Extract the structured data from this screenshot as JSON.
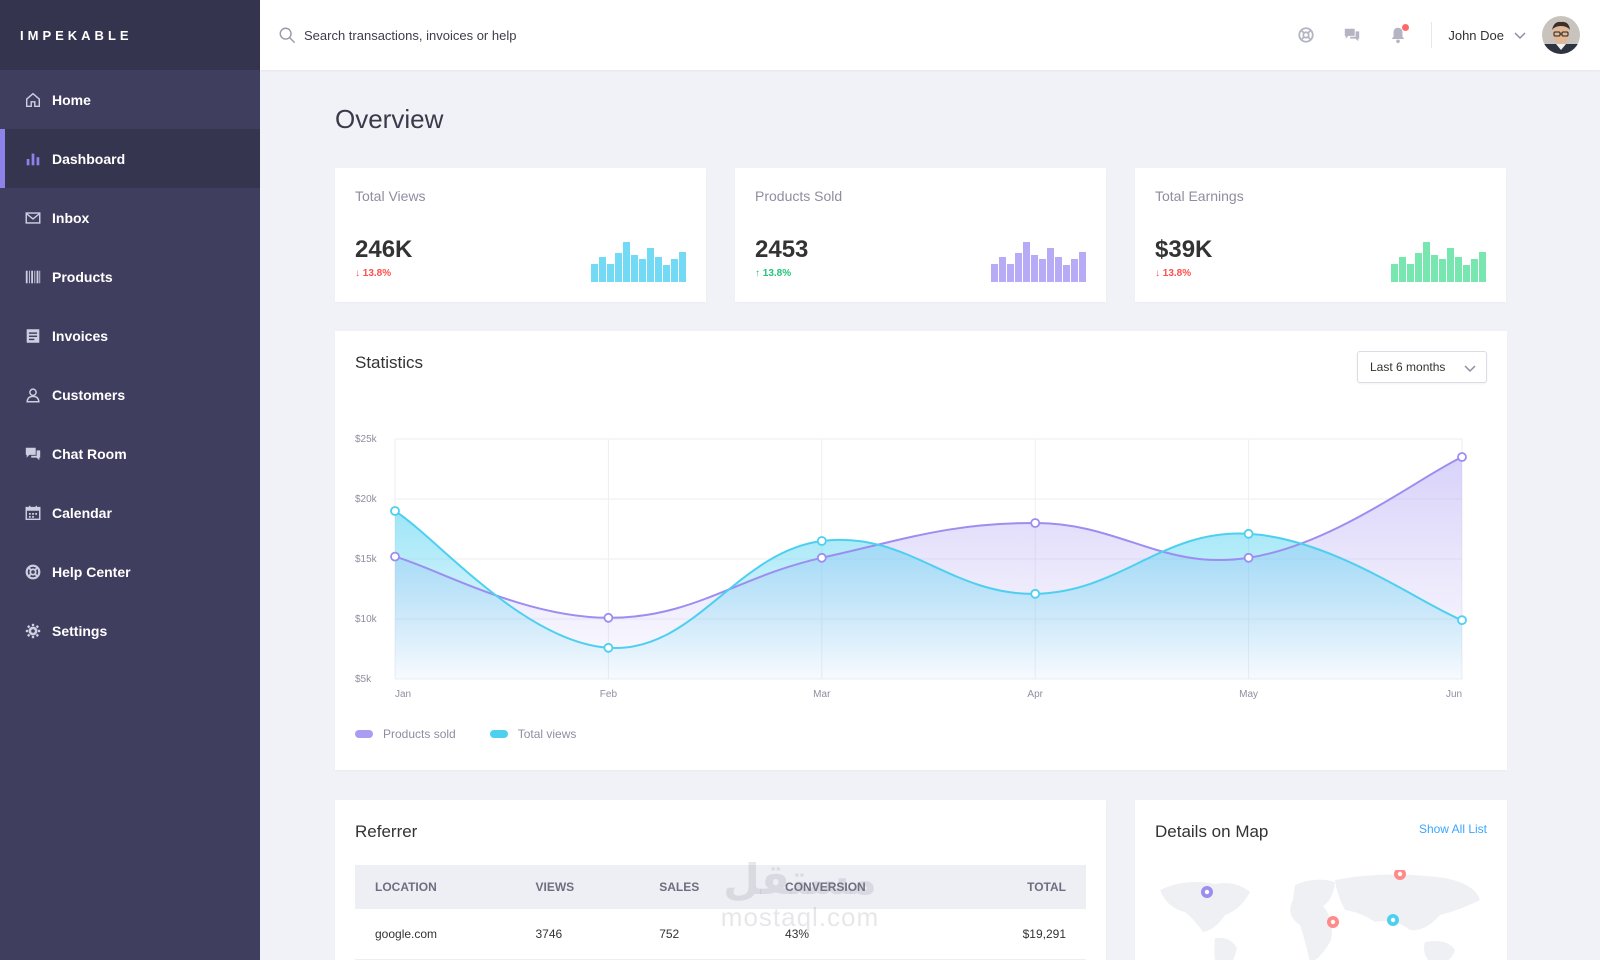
{
  "app": {
    "brand": "IMPEKABLE"
  },
  "sidebar": {
    "items": [
      {
        "label": "Home",
        "icon": "home-icon",
        "active": false
      },
      {
        "label": "Dashboard",
        "icon": "bar-chart-icon",
        "active": true
      },
      {
        "label": "Inbox",
        "icon": "envelope-icon",
        "active": false
      },
      {
        "label": "Products",
        "icon": "barcode-icon",
        "active": false
      },
      {
        "label": "Invoices",
        "icon": "invoice-icon",
        "active": false
      },
      {
        "label": "Customers",
        "icon": "user-icon",
        "active": false
      },
      {
        "label": "Chat Room",
        "icon": "chat-icon",
        "active": false
      },
      {
        "label": "Calendar",
        "icon": "calendar-icon",
        "active": false
      },
      {
        "label": "Help Center",
        "icon": "lifebuoy-icon",
        "active": false
      },
      {
        "label": "Settings",
        "icon": "gear-icon",
        "active": false
      }
    ]
  },
  "header": {
    "search_placeholder": "Search transactions, invoices or help",
    "user_name": "John Doe"
  },
  "main": {
    "title": "Overview",
    "kpis": [
      {
        "label": "Total Views",
        "value": "246K",
        "change": "13.8%",
        "direction": "down",
        "color": "#5bd3f5",
        "bars": [
          16,
          22,
          16,
          25,
          35,
          24,
          20,
          30,
          22,
          15,
          20,
          26
        ]
      },
      {
        "label": "Products Sold",
        "value": "2453",
        "change": "13.8%",
        "direction": "up",
        "color": "#a99cf2",
        "bars": [
          16,
          22,
          16,
          25,
          35,
          24,
          20,
          30,
          22,
          15,
          20,
          26
        ]
      },
      {
        "label": "Total Earnings",
        "value": "$39K",
        "change": "13.8%",
        "direction": "down",
        "color": "#5fe3a1",
        "bars": [
          16,
          22,
          16,
          25,
          35,
          24,
          20,
          30,
          22,
          15,
          20,
          26
        ]
      }
    ],
    "statistics": {
      "title": "Statistics",
      "range": "Last 6 months"
    },
    "referrer": {
      "title": "Referrer",
      "columns": [
        "LOCATION",
        "VIEWS",
        "SALES",
        "CONVERSION",
        "TOTAL"
      ],
      "rows": [
        [
          "google.com",
          "3746",
          "752",
          "43%",
          "$19,291"
        ]
      ]
    },
    "map": {
      "title": "Details on Map",
      "link": "Show All List"
    }
  },
  "chart_data": {
    "type": "area",
    "title": "Statistics",
    "categories": [
      "Jan",
      "Feb",
      "Mar",
      "Apr",
      "May",
      "Jun"
    ],
    "ylim": [
      5,
      25
    ],
    "yticks": [
      "$5k",
      "$10k",
      "$15k",
      "$20k",
      "$25k"
    ],
    "series": [
      {
        "name": "Products sold",
        "color": "#9b8ef0",
        "values": [
          15.2,
          10.1,
          15.1,
          18.0,
          15.1,
          23.5
        ]
      },
      {
        "name": "Total views",
        "color": "#4dd0f0",
        "values": [
          19.0,
          7.6,
          16.5,
          12.1,
          17.1,
          9.9
        ]
      }
    ]
  },
  "watermark": {
    "arabic": "مستقل",
    "latin": "mostaql.com"
  }
}
